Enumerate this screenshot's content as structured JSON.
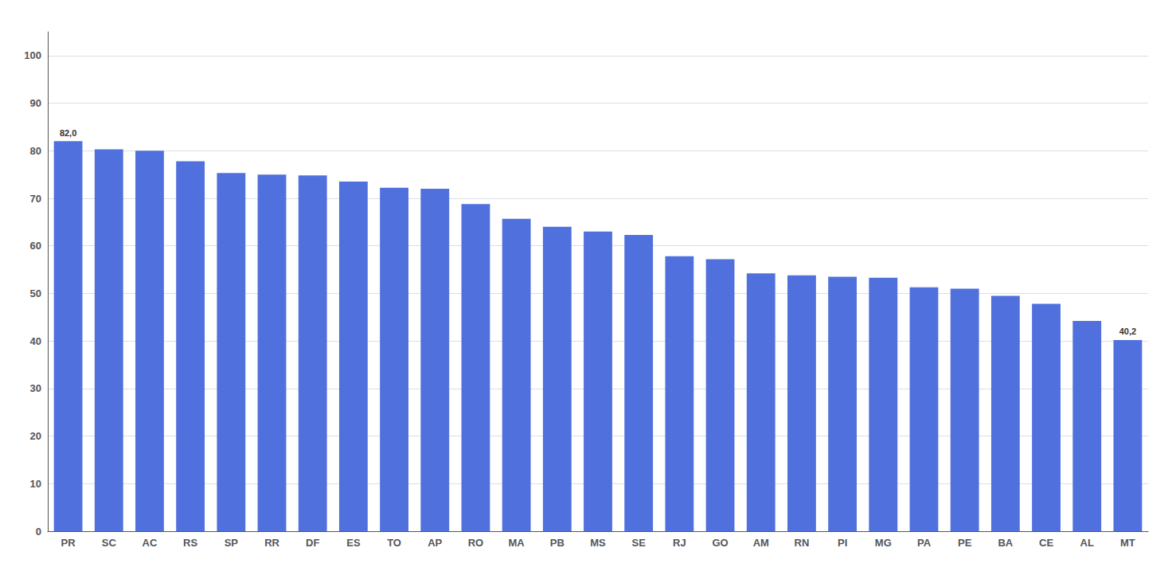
{
  "chart_data": {
    "type": "bar",
    "categories": [
      "PR",
      "SC",
      "AC",
      "RS",
      "SP",
      "RR",
      "DF",
      "ES",
      "TO",
      "AP",
      "RO",
      "MA",
      "PB",
      "MS",
      "SE",
      "RJ",
      "GO",
      "AM",
      "RN",
      "PI",
      "MG",
      "PA",
      "PE",
      "BA",
      "CE",
      "AL",
      "MT"
    ],
    "values": [
      82.0,
      80.3,
      80.0,
      77.8,
      75.3,
      75.0,
      74.8,
      73.5,
      72.2,
      72.0,
      68.8,
      65.7,
      64.0,
      63.0,
      62.3,
      57.8,
      57.2,
      54.2,
      53.8,
      53.5,
      53.3,
      51.3,
      51.0,
      49.5,
      47.8,
      44.2,
      40.2
    ],
    "value_labels": [
      "82,0",
      null,
      null,
      null,
      null,
      null,
      null,
      null,
      null,
      null,
      null,
      null,
      null,
      null,
      null,
      null,
      null,
      null,
      null,
      null,
      null,
      null,
      null,
      null,
      null,
      null,
      "40,2"
    ],
    "data_labels": true,
    "ylim": [
      0,
      105
    ],
    "yticks": [
      0,
      10,
      20,
      30,
      40,
      50,
      60,
      70,
      80,
      90,
      100
    ],
    "grid": true
  }
}
